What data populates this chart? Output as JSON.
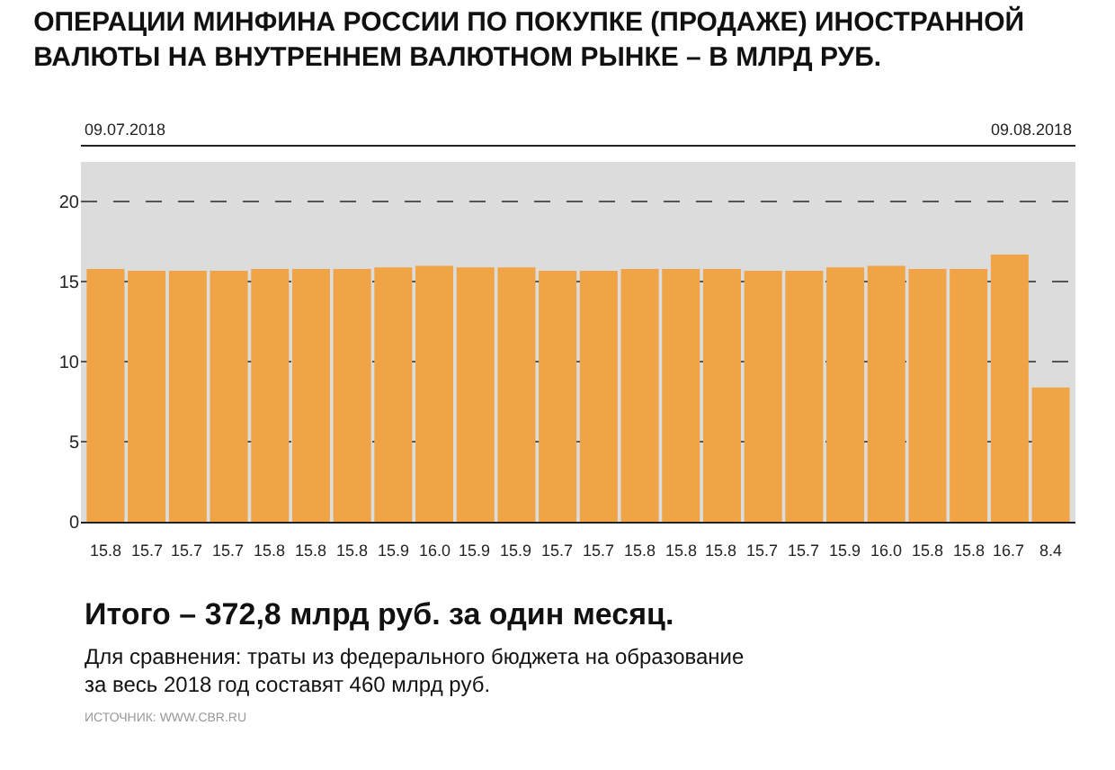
{
  "chart_data": {
    "type": "bar",
    "title": "ОПЕРАЦИИ МИНФИНА РОССИИ ПО ПОКУПКЕ (ПРОДАЖЕ) ИНОСТРАННОЙ\nВАЛЮТЫ НА ВНУТРЕННЕМ ВАЛЮТНОМ РЫНКЕ – В МЛРД РУБ.",
    "categories": [
      null,
      null,
      null,
      null,
      null,
      null,
      null,
      null,
      null,
      null,
      null,
      null,
      null,
      null,
      null,
      null,
      null,
      null,
      null,
      null,
      null,
      null,
      null,
      null
    ],
    "values": [
      15.8,
      15.7,
      15.7,
      15.7,
      15.8,
      15.8,
      15.8,
      15.9,
      16.0,
      15.9,
      15.9,
      15.7,
      15.7,
      15.8,
      15.8,
      15.8,
      15.7,
      15.7,
      15.9,
      16.0,
      15.8,
      15.8,
      16.7,
      8.4
    ],
    "color": "#f0a445",
    "value_labels": [
      "15.8",
      "15.7",
      "15.7",
      "15.7",
      "15.8",
      "15.8",
      "15.8",
      "15.9",
      "16.0",
      "15.9",
      "15.9",
      "15.7",
      "15.7",
      "15.8",
      "15.8",
      "15.8",
      "15.7",
      "15.7",
      "15.9",
      "16.0",
      "15.8",
      "15.8",
      "16.7",
      "8.4"
    ],
    "ylim": [
      0,
      22.5
    ],
    "yticks": [
      0,
      5,
      10,
      15,
      20
    ],
    "grid": "y",
    "annotations": [
      "09.07.2018",
      "09.08.2018",
      "Итого – 372,8 млрд руб. за один месяц.",
      "Для сравнения: траты из федерального бюджета на образование\nза весь 2018 год составят 460 млрд руб.",
      "ИСТОЧНИК: WWW.CBR.RU"
    ]
  }
}
